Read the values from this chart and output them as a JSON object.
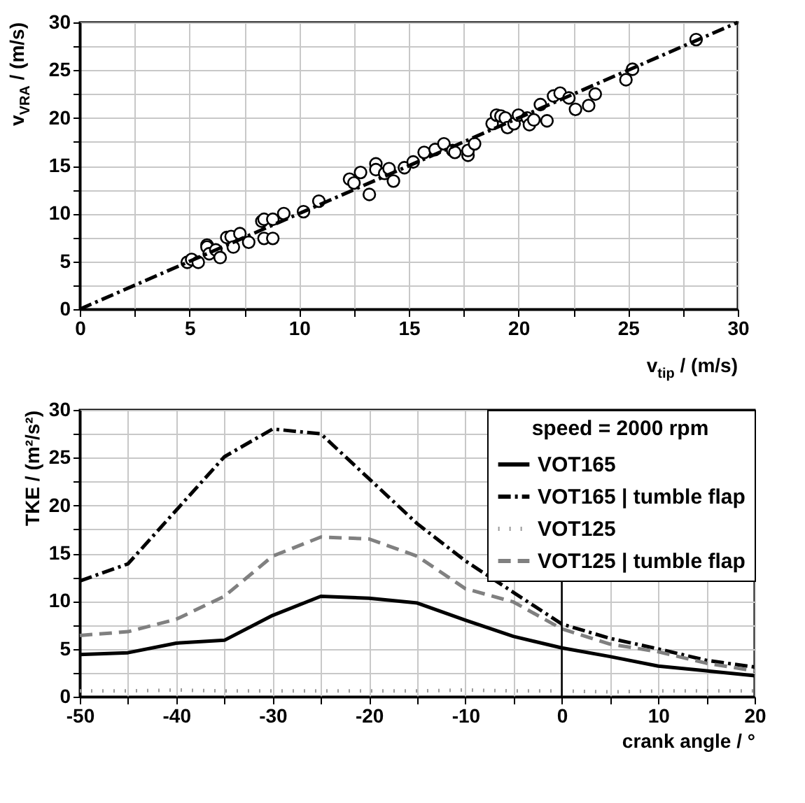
{
  "chart_data": [
    {
      "type": "scatter",
      "xlabel": "v$_{tip}$ / (m/s)",
      "ylabel": "v$_{VRA}$ / (m/s)",
      "xlim": [
        0,
        30
      ],
      "ylim": [
        0,
        30
      ],
      "xticks": [
        0,
        {
          "value": 2.5,
          "label": null
        },
        5,
        {
          "value": 7.5,
          "label": null
        },
        10,
        {
          "value": 12.5,
          "label": null
        },
        15,
        {
          "value": 17.5,
          "label": null
        },
        20,
        {
          "value": 22.5,
          "label": null
        },
        25,
        {
          "value": 27.5,
          "label": null
        },
        30
      ],
      "yticks": [
        0,
        {
          "value": 2.5,
          "label": null
        },
        5,
        {
          "value": 7.5,
          "label": null
        },
        10,
        {
          "value": 12.5,
          "label": null
        },
        15,
        {
          "value": 17.5,
          "label": null
        },
        20,
        {
          "value": 22.5,
          "label": null
        },
        25,
        {
          "value": 27.5,
          "label": null
        },
        30
      ],
      "grid": true,
      "legend": false,
      "series": [
        {
          "type": "scatter",
          "color": "#000000",
          "marker": "circle",
          "x": [
            4.9,
            5.1,
            5.4,
            5.8,
            5.8,
            5.9,
            6.2,
            6.4,
            6.7,
            6.9,
            7.0,
            7.3,
            7.7,
            8.3,
            8.4,
            8.4,
            8.8,
            8.8,
            9.3,
            10.2,
            10.9,
            12.3,
            12.5,
            12.8,
            13.2,
            13.5,
            13.5,
            13.9,
            14.1,
            14.3,
            14.8,
            15.2,
            15.7,
            16.2,
            16.6,
            17.0,
            17.1,
            17.7,
            17.7,
            18.0,
            18.8,
            19.0,
            19.2,
            19.4,
            19.5,
            19.8,
            20.0,
            20.4,
            20.5,
            20.7,
            21.0,
            21.3,
            21.6,
            21.9,
            22.3,
            22.6,
            23.2,
            23.5,
            24.9,
            25.2,
            28.1
          ],
          "values": [
            4.9,
            5.2,
            4.9,
            6.7,
            6.5,
            5.8,
            6.2,
            5.4,
            7.5,
            7.6,
            6.5,
            7.9,
            7.0,
            9.2,
            9.4,
            7.4,
            7.4,
            9.4,
            10.0,
            10.2,
            11.3,
            13.6,
            13.2,
            14.3,
            12.0,
            15.2,
            14.6,
            14.2,
            14.7,
            13.4,
            14.8,
            15.4,
            16.4,
            16.7,
            17.3,
            16.6,
            16.4,
            16.1,
            16.6,
            17.3,
            19.4,
            20.3,
            20.2,
            20.0,
            19.0,
            19.4,
            20.3,
            20.0,
            19.3,
            19.8,
            21.4,
            19.7,
            22.3,
            22.6,
            22.1,
            20.9,
            21.3,
            22.5,
            24.0,
            25.1,
            28.2
          ]
        },
        {
          "type": "line",
          "color": "#000000",
          "line_style": "dashdot",
          "x": [
            0,
            30
          ],
          "values": [
            0,
            30
          ]
        }
      ]
    },
    {
      "type": "line",
      "xlabel": "crank angle  / °",
      "ylabel": "TKE / (m²/s²)",
      "legend_title": "speed =  2000 rpm",
      "legend": "top right",
      "x": [
        -50,
        -45,
        -40,
        -35,
        -30,
        -25,
        -20,
        -15,
        -10,
        -5,
        0,
        5,
        10,
        15,
        20
      ],
      "xlim": [
        -50,
        20
      ],
      "ylim": [
        0,
        30
      ],
      "xticks": [
        -50,
        {
          "value": -45,
          "label": null
        },
        -40,
        {
          "value": -35,
          "label": null
        },
        -30,
        {
          "value": -25,
          "label": null
        },
        -20,
        {
          "value": -15,
          "label": null
        },
        -10,
        {
          "value": -5,
          "label": null
        },
        0,
        {
          "value": 5,
          "label": null
        },
        10,
        {
          "value": 15,
          "label": null
        },
        20
      ],
      "yticks": [
        0,
        {
          "value": 2.5,
          "label": null
        },
        5,
        {
          "value": 7.5,
          "label": null
        },
        10,
        {
          "value": 12.5,
          "label": null
        },
        15,
        {
          "value": 17.5,
          "label": null
        },
        20,
        {
          "value": 22.5,
          "label": null
        },
        25,
        {
          "value": 27.5,
          "label": null
        },
        30
      ],
      "grid": true,
      "ref_lines": [
        {
          "axis": "x",
          "value": 0,
          "color": "#000000"
        }
      ],
      "series": [
        {
          "name": "VOT165",
          "color": "#000000",
          "line_style": "solid",
          "values": [
            4.4,
            4.6,
            5.6,
            5.9,
            8.5,
            10.5,
            10.3,
            9.8,
            8.0,
            6.3,
            5.1,
            4.2,
            3.2,
            2.7,
            2.2
          ]
        },
        {
          "name": "VOT165 | tumble flap",
          "color": "#000000",
          "line_style": "dashdot",
          "values": [
            12.1,
            13.9,
            19.5,
            25.1,
            28.0,
            27.5,
            22.8,
            18.1,
            14.2,
            10.9,
            7.6,
            6.1,
            5.0,
            3.8,
            3.1
          ]
        },
        {
          "name": "VOT125",
          "color": "#999999",
          "line_style": "dotted",
          "values": [
            0.6,
            0.6,
            0.7,
            0.6,
            0.6,
            0.6,
            0.6,
            0.6,
            0.7,
            0.6,
            0.6,
            0.5,
            0.6,
            0.6,
            0.6
          ]
        },
        {
          "name": "VOT125 | tumble flap",
          "color": "#808080",
          "line_style": "dashed",
          "values": [
            6.4,
            6.8,
            8.1,
            10.5,
            14.7,
            16.7,
            16.5,
            14.7,
            11.3,
            9.9,
            7.1,
            5.5,
            4.7,
            3.5,
            2.7
          ]
        }
      ]
    }
  ]
}
